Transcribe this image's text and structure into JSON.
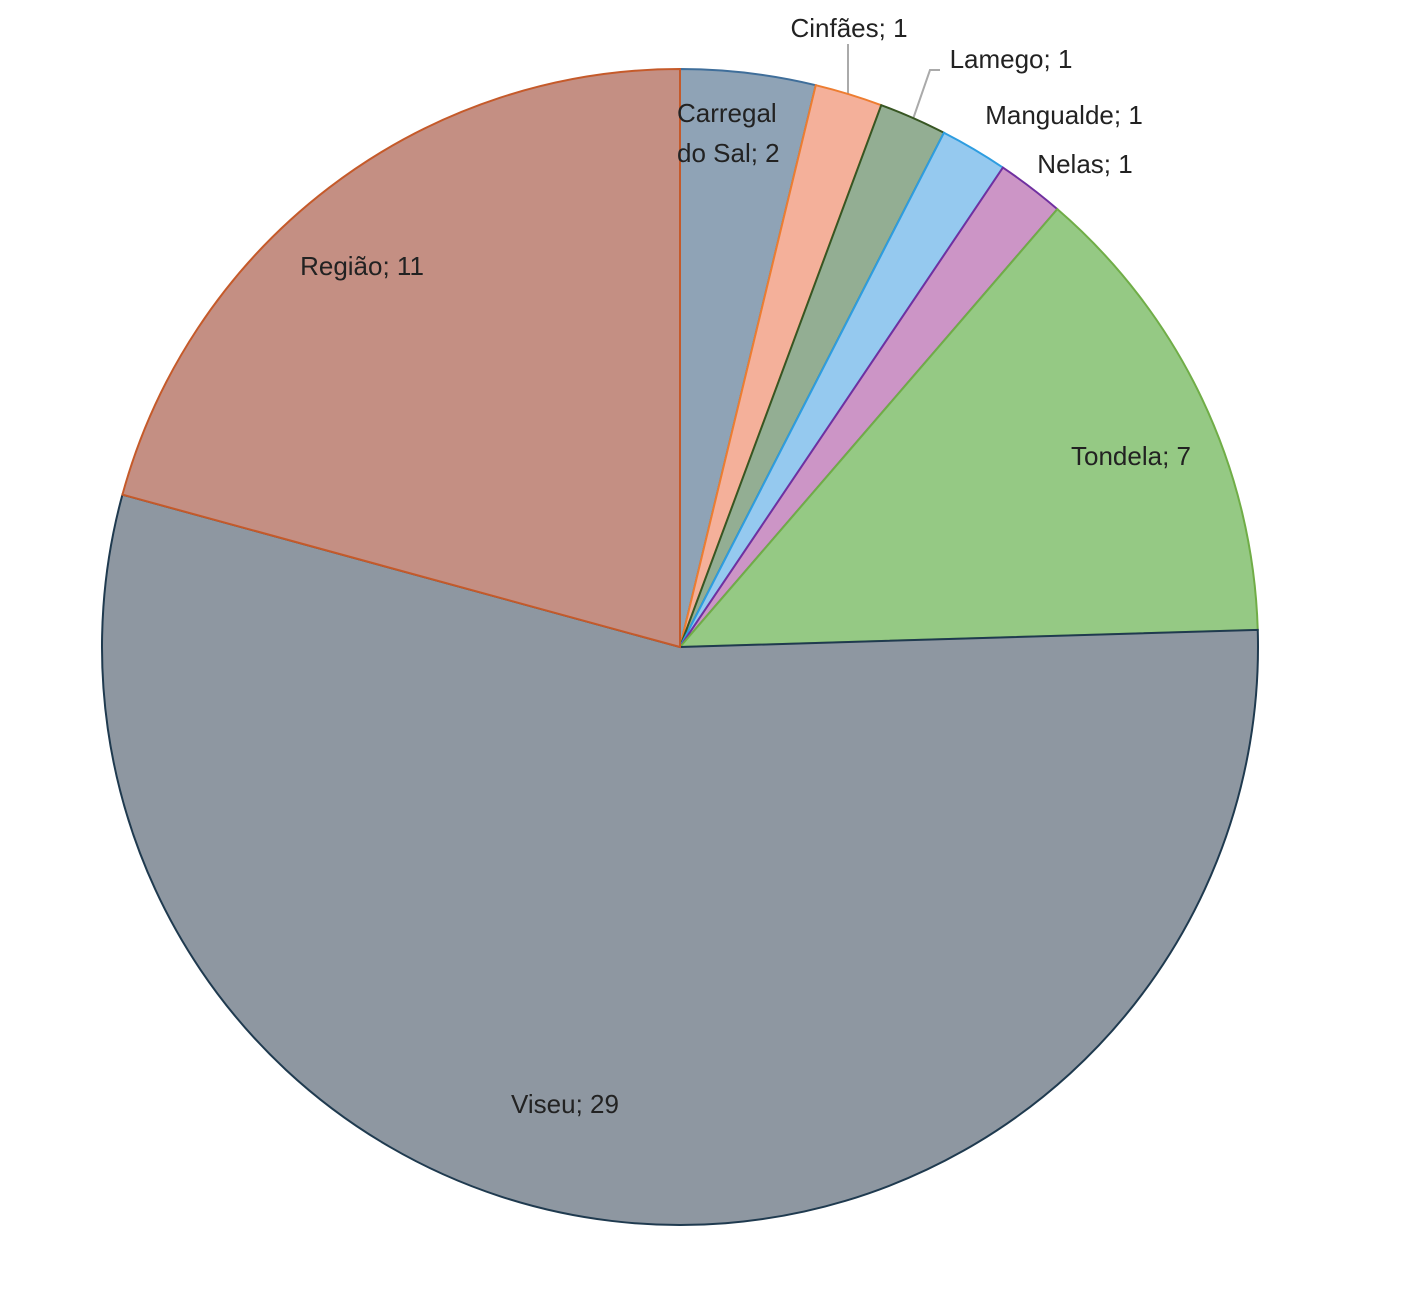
{
  "chart_data": {
    "type": "pie",
    "categories": [
      "Carregal do Sal",
      "Cinfães",
      "Lamego",
      "Mangualde",
      "Nelas",
      "Tondela",
      "Viseu",
      "Região"
    ],
    "values": [
      2,
      1,
      1,
      1,
      1,
      7,
      29,
      11
    ],
    "value_labels": [
      "Carregal do Sal; 2",
      "Cinfães; 1",
      "Lamego; 1",
      "Mangualde; 1",
      "Nelas; 1",
      "Tondela; 7",
      "Viseu; 29",
      "Região; 11"
    ],
    "colors": [
      "#8fa3b6",
      "#f4b09a",
      "#93ae93",
      "#95c9ef",
      "#cc95c6",
      "#95c984",
      "#8e97a1",
      "#c48f83"
    ],
    "edge_colors": [
      "#3f6e9a",
      "#ed7d31",
      "#375623",
      "#2e9de0",
      "#7030a0",
      "#70ad47",
      "#1f3a4f",
      "#c55a2a"
    ]
  }
}
